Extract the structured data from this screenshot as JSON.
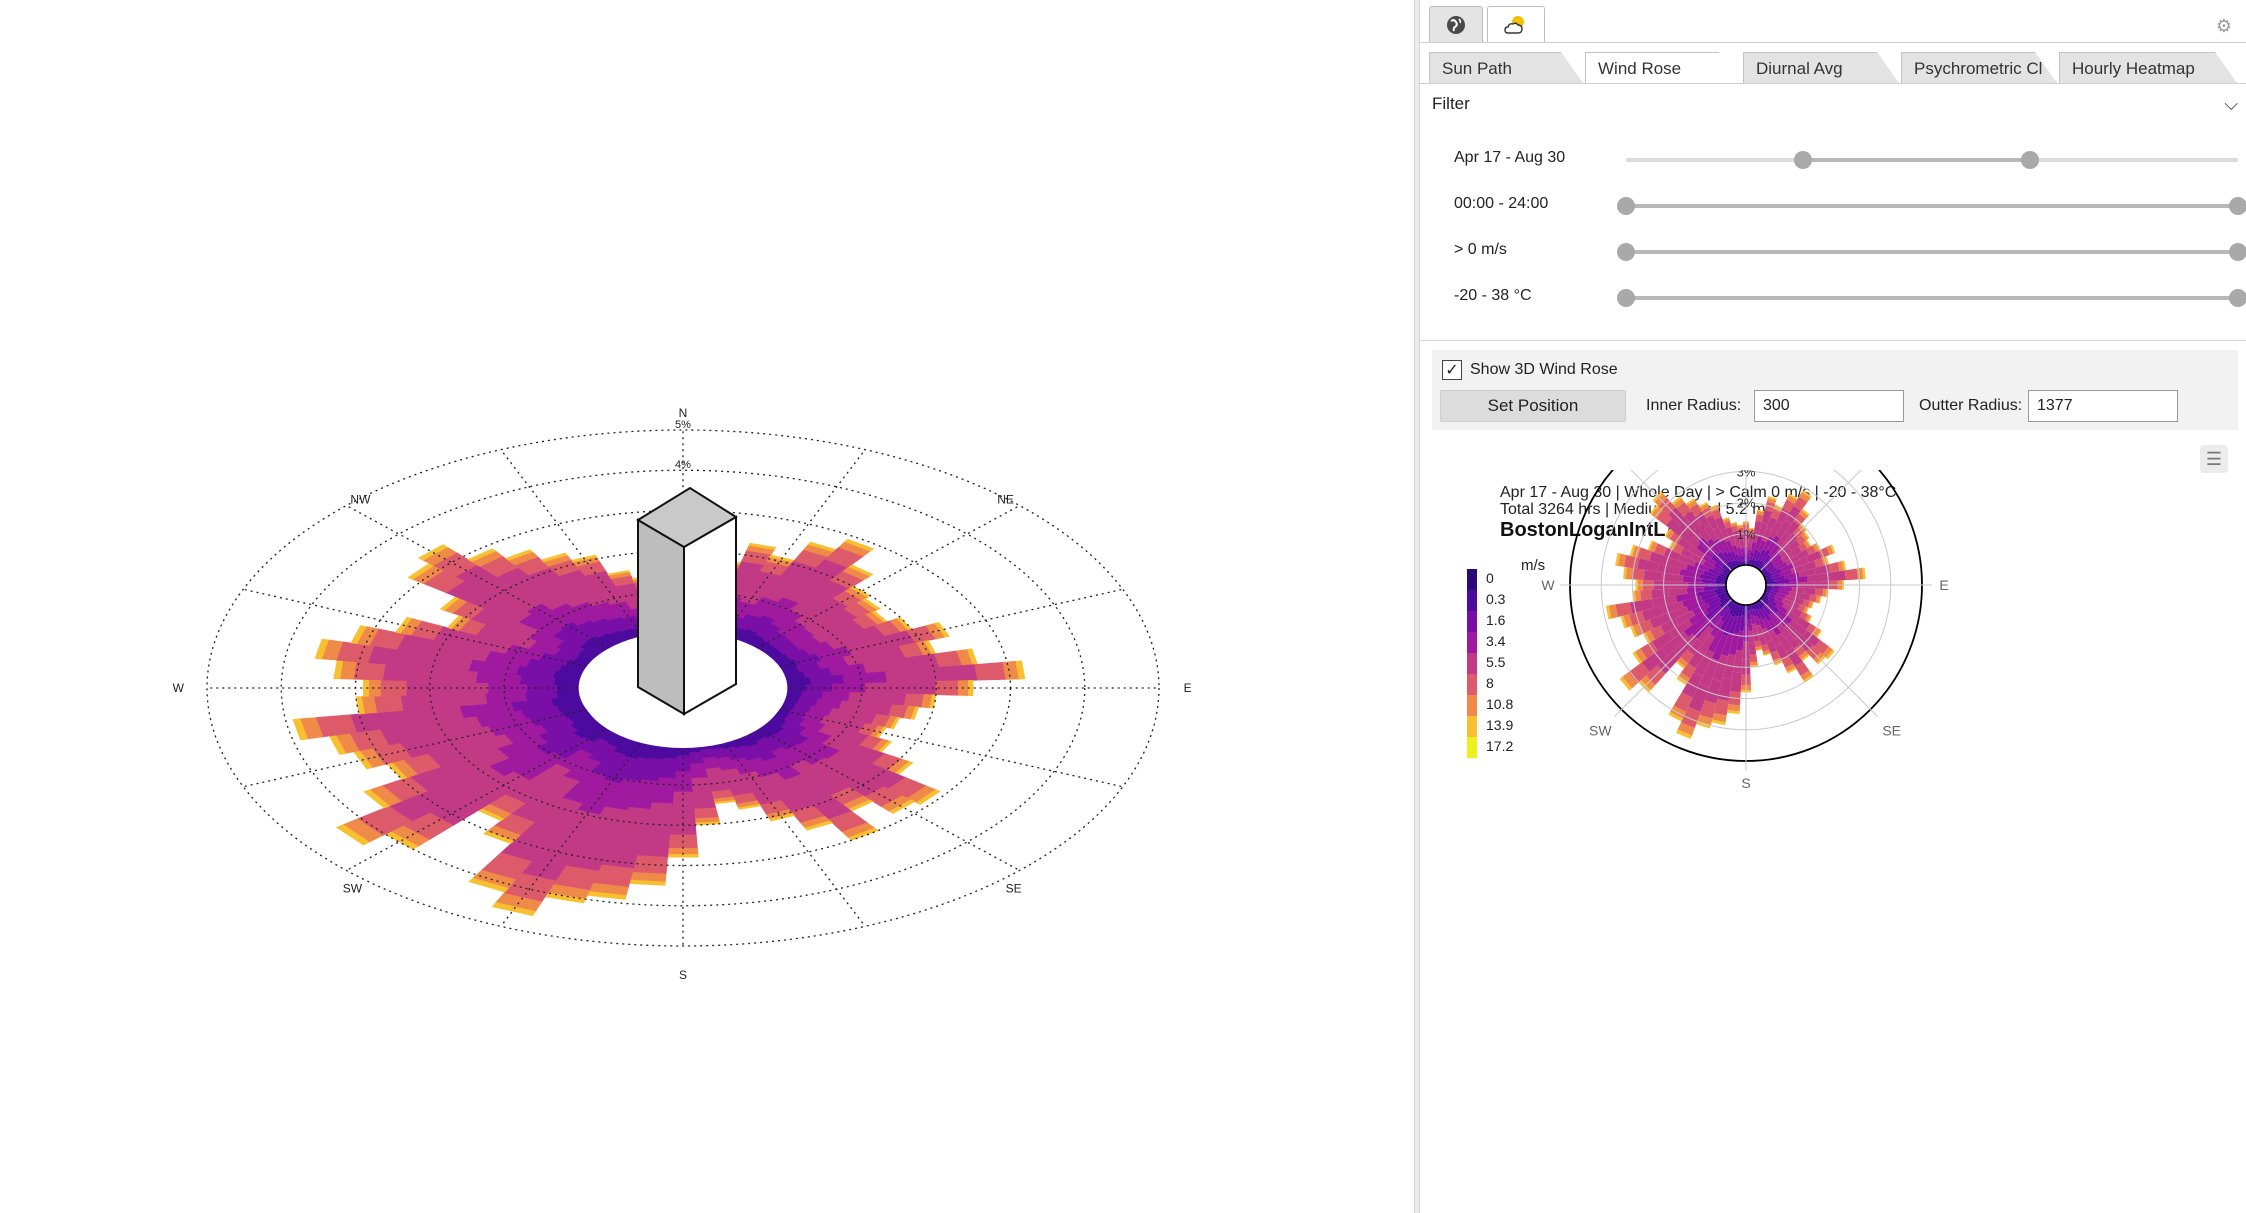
{
  "top_tabs": [
    {
      "icon": "globe-icon",
      "active": false
    },
    {
      "icon": "weather-icon",
      "active": true
    }
  ],
  "sub_tabs": [
    {
      "label": "Sun Path",
      "active": false
    },
    {
      "label": "Wind Rose",
      "active": true
    },
    {
      "label": "Diurnal Avg",
      "active": false
    },
    {
      "label": "Psychrometric Cl",
      "active": false
    },
    {
      "label": "Hourly Heatmap",
      "active": false
    }
  ],
  "filter": {
    "title": "Filter",
    "sliders": [
      {
        "label": "Apr 17 - Aug 30",
        "low": 0.29,
        "high": 0.66
      },
      {
        "label": "00:00 - 24:00",
        "low": 0.0,
        "high": 1.0
      },
      {
        "label": "> 0 m/s",
        "low": 0.0,
        "high": 1.0
      },
      {
        "label": "-20 - 38 °C",
        "low": 0.0,
        "high": 1.0
      }
    ]
  },
  "options": {
    "show_3d_label": "Show 3D Wind Rose",
    "show_3d_checked": true,
    "set_position_label": "Set Position",
    "inner_radius_label": "Inner Radius:",
    "inner_radius_value": "300",
    "outer_radius_label": "Outter Radius:",
    "outer_radius_value": "1377"
  },
  "viewport3d": {
    "directions": [
      "N",
      "NE",
      "E",
      "SE",
      "S",
      "SW",
      "W",
      "NW"
    ],
    "ring_labels": [
      "5%",
      "4%"
    ]
  },
  "chart_data": {
    "type": "wind-rose",
    "subtitle_line1": "Apr 17 - Aug 30 | Whole Day | > Calm 0 m/s | -20 - 38°C",
    "subtitle_line2": "Total 3264 hrs | Medium Speed 5.2 m/s",
    "title": "BostonLoganIntLArpt",
    "legend_title": "m/s",
    "legend_bins": [
      {
        "label": "0",
        "color": "#2a0a7a"
      },
      {
        "label": "0.3",
        "color": "#4d0a9e"
      },
      {
        "label": "1.6",
        "color": "#7a0fa8"
      },
      {
        "label": "3.4",
        "color": "#a01aa0"
      },
      {
        "label": "5.5",
        "color": "#c23a86"
      },
      {
        "label": "8",
        "color": "#dd5a6a"
      },
      {
        "label": "10.8",
        "color": "#f08a48"
      },
      {
        "label": "13.9",
        "color": "#f8c030"
      },
      {
        "label": "17.2",
        "color": "#eef21c"
      }
    ],
    "directions": [
      "N",
      "NE",
      "E",
      "SE",
      "S",
      "SW",
      "W",
      "NW"
    ],
    "radial_ticks": [
      "1%",
      "2%",
      "3%",
      "4%",
      "5%"
    ],
    "r_max_percent": 5,
    "sector_frequencies_percent": [
      1.4,
      1.2,
      1.8,
      2.3,
      2.1,
      2.6,
      2.9,
      2.4,
      2.0,
      1.9,
      1.8,
      2.0,
      2.4,
      2.1,
      2.6,
      3.2,
      2.5,
      2.0,
      1.8,
      1.6,
      1.5,
      1.7,
      2.2,
      2.9,
      2.8,
      2.4,
      3.0,
      2.5,
      2.1,
      1.7,
      1.5,
      2.0,
      2.8,
      3.5,
      3.9,
      4.1,
      4.6,
      4.2,
      3.1,
      2.7,
      4.0,
      4.4,
      3.6,
      3.0,
      3.3,
      3.5,
      3.9,
      3.0,
      2.9,
      3.3,
      3.6,
      3.2,
      2.7,
      2.1,
      2.4,
      3.2,
      3.4,
      2.9,
      2.6,
      2.3,
      2.1,
      1.6,
      1.4,
      1.3
    ]
  }
}
